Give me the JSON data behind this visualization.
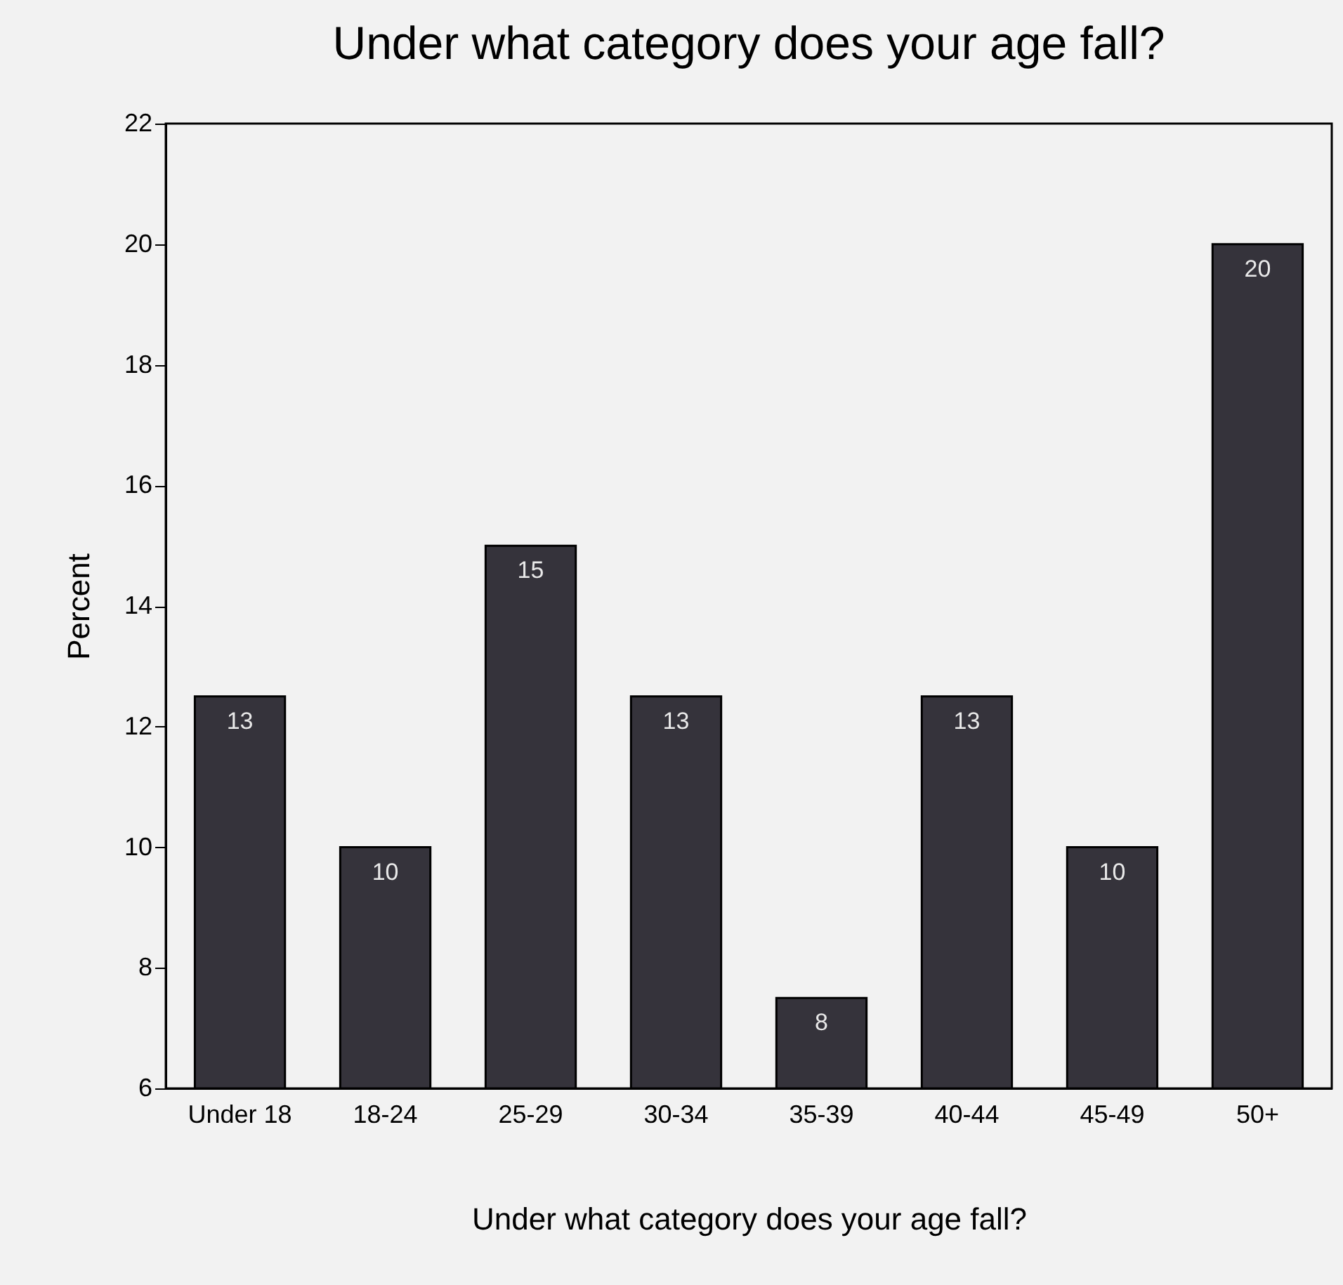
{
  "chart_data": {
    "type": "bar",
    "title": "Under what category does your age fall?",
    "xlabel": "Under what category does your age fall?",
    "ylabel": "Percent",
    "categories": [
      "Under 18",
      "18-24",
      "25-29",
      "30-34",
      "35-39",
      "40-44",
      "45-49",
      "50+"
    ],
    "values": [
      12.5,
      10,
      15,
      12.5,
      7.5,
      12.5,
      10,
      20
    ],
    "value_labels": [
      "13",
      "10",
      "15",
      "13",
      "8",
      "13",
      "10",
      "20"
    ],
    "color": "#35333b",
    "ylim": [
      6,
      22
    ],
    "yticks": [
      6,
      8,
      10,
      12,
      14,
      16,
      18,
      20,
      22
    ],
    "grid": false
  }
}
